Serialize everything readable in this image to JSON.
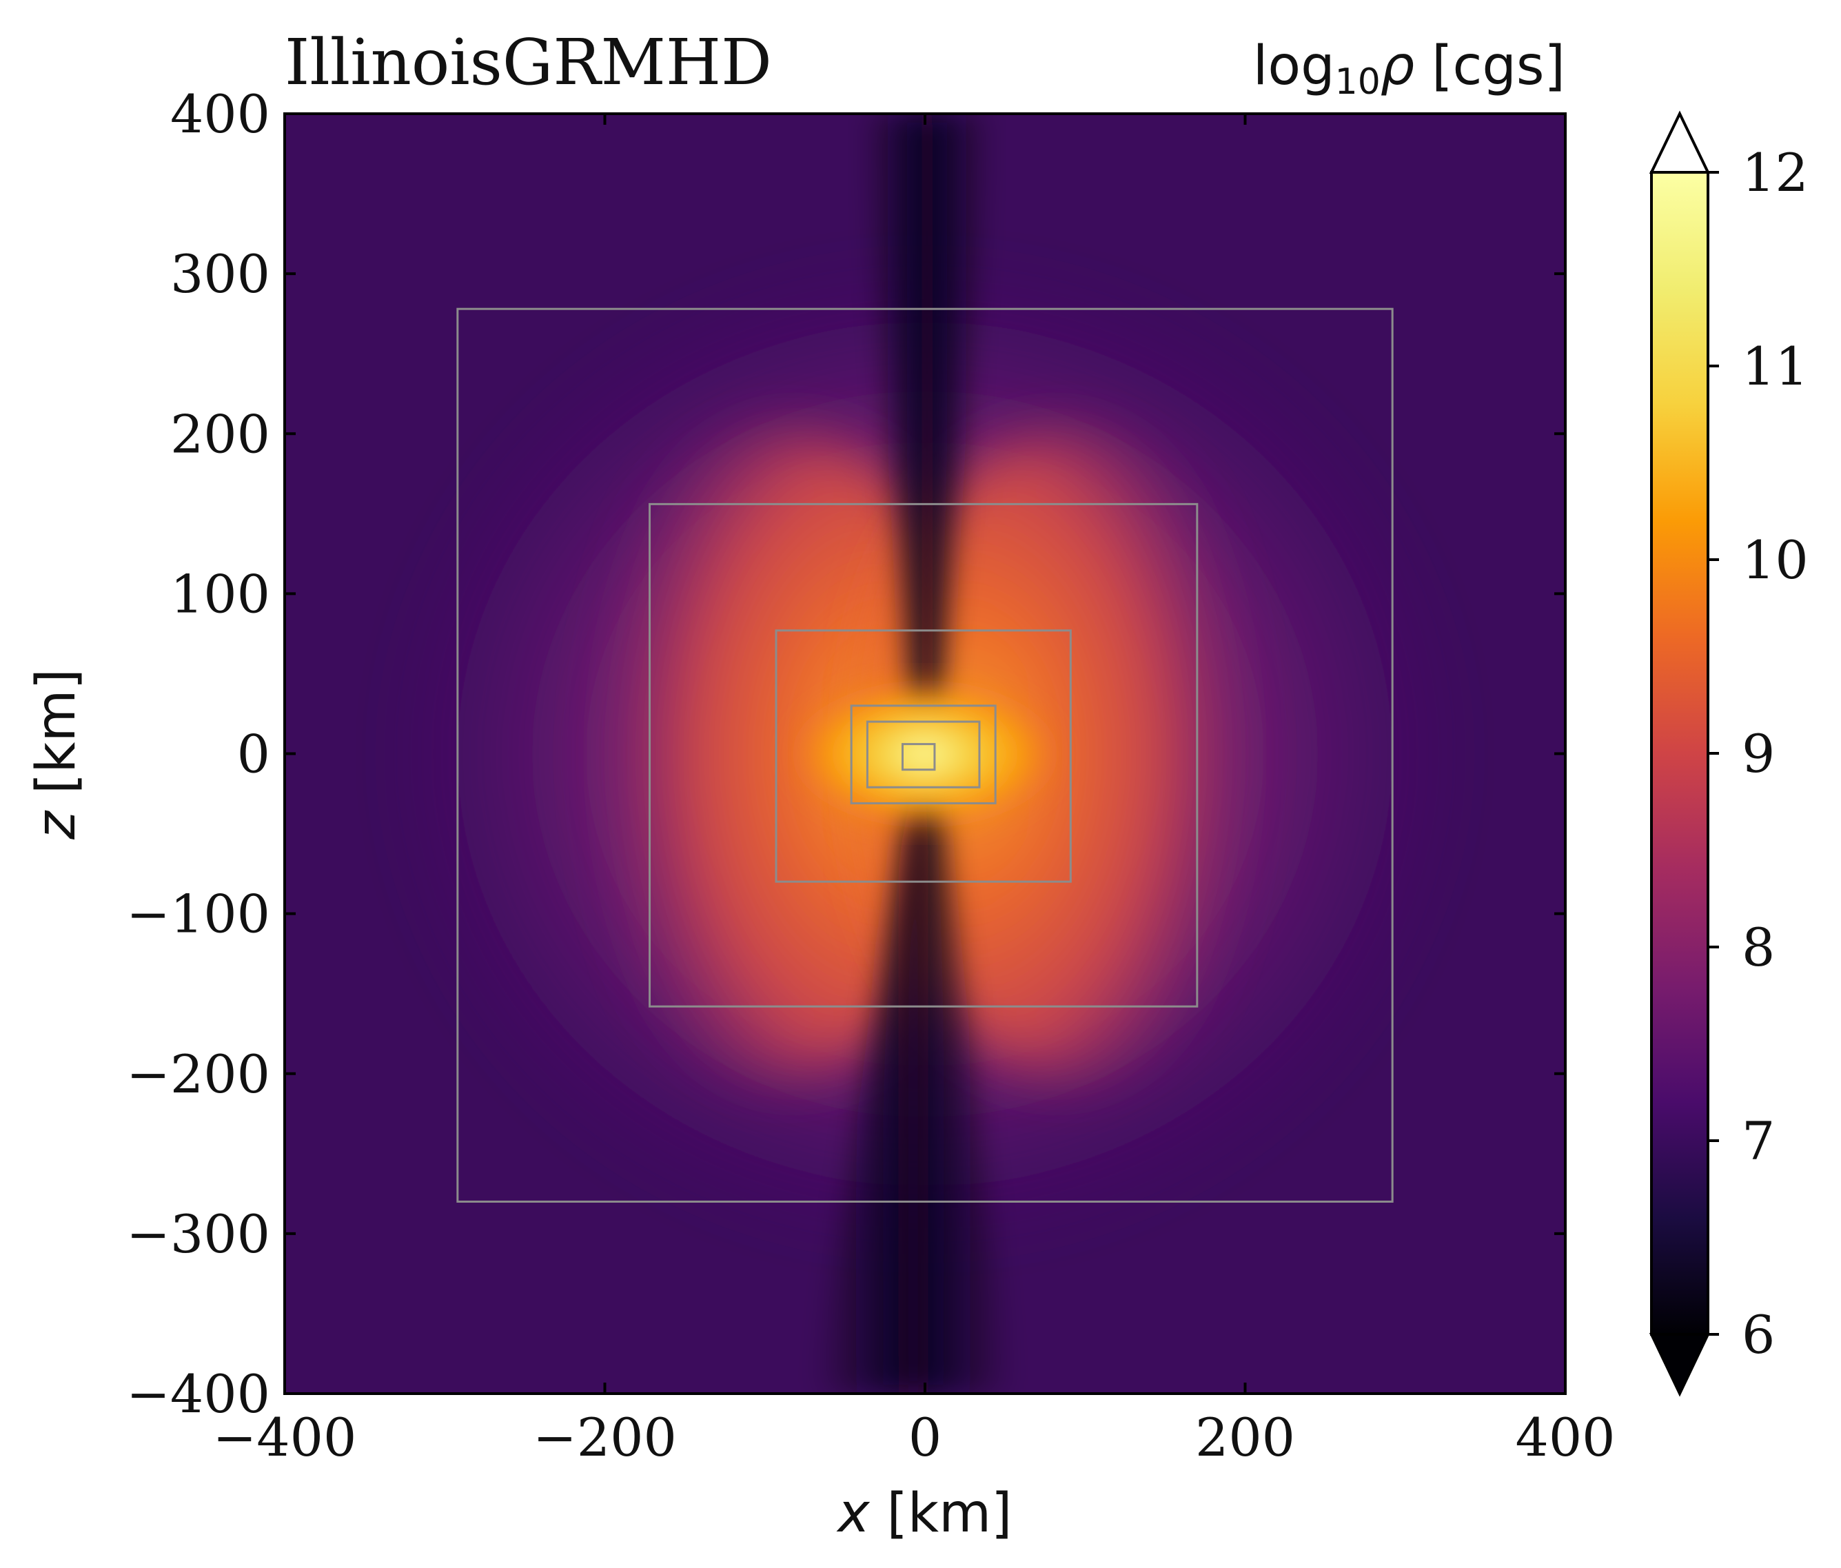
{
  "chart_data": {
    "type": "heatmap",
    "title_left": "IllinoisGRMHD",
    "colorbar_label": {
      "base": "log",
      "subscript": "10",
      "symbol": "ρ",
      "unit": " [cgs]"
    },
    "xlabel": {
      "var": "x",
      "unit": " [km]"
    },
    "ylabel": {
      "var": "z",
      "unit": " [km]"
    },
    "xlim": [
      -400,
      400
    ],
    "ylim": [
      -400,
      400
    ],
    "x_ticks": [
      "−400",
      "−200",
      "0",
      "200",
      "400"
    ],
    "y_ticks": [
      "400",
      "300",
      "200",
      "100",
      "0",
      "−100",
      "−200",
      "−300",
      "−400"
    ],
    "x_tick_values": [
      -400,
      -200,
      0,
      200,
      400
    ],
    "y_tick_values": [
      400,
      300,
      200,
      100,
      0,
      -100,
      -200,
      -300,
      -400
    ],
    "colormap": "inferno",
    "colorbar_range": [
      6,
      12
    ],
    "colorbar_ticks": [
      "6",
      "7",
      "8",
      "9",
      "10",
      "11",
      "12"
    ],
    "colorbar_tick_values": [
      6,
      7,
      8,
      9,
      10,
      11,
      12
    ],
    "colorbar_extend": "both",
    "refinement_boxes_km": [
      {
        "x": [
          -292,
          292
        ],
        "z": [
          -280,
          278
        ]
      },
      {
        "x": [
          -172,
          170
        ],
        "z": [
          -158,
          156
        ]
      },
      {
        "x": [
          -93,
          91
        ],
        "z": [
          -80,
          77
        ]
      },
      {
        "x": [
          -46,
          44
        ],
        "z": [
          -31,
          30
        ]
      },
      {
        "x": [
          -36,
          34
        ],
        "z": [
          -21,
          20
        ]
      },
      {
        "x": [
          -14,
          6
        ],
        "z": [
          -10,
          6
        ]
      }
    ],
    "box_color": "#8c8c8c"
  }
}
